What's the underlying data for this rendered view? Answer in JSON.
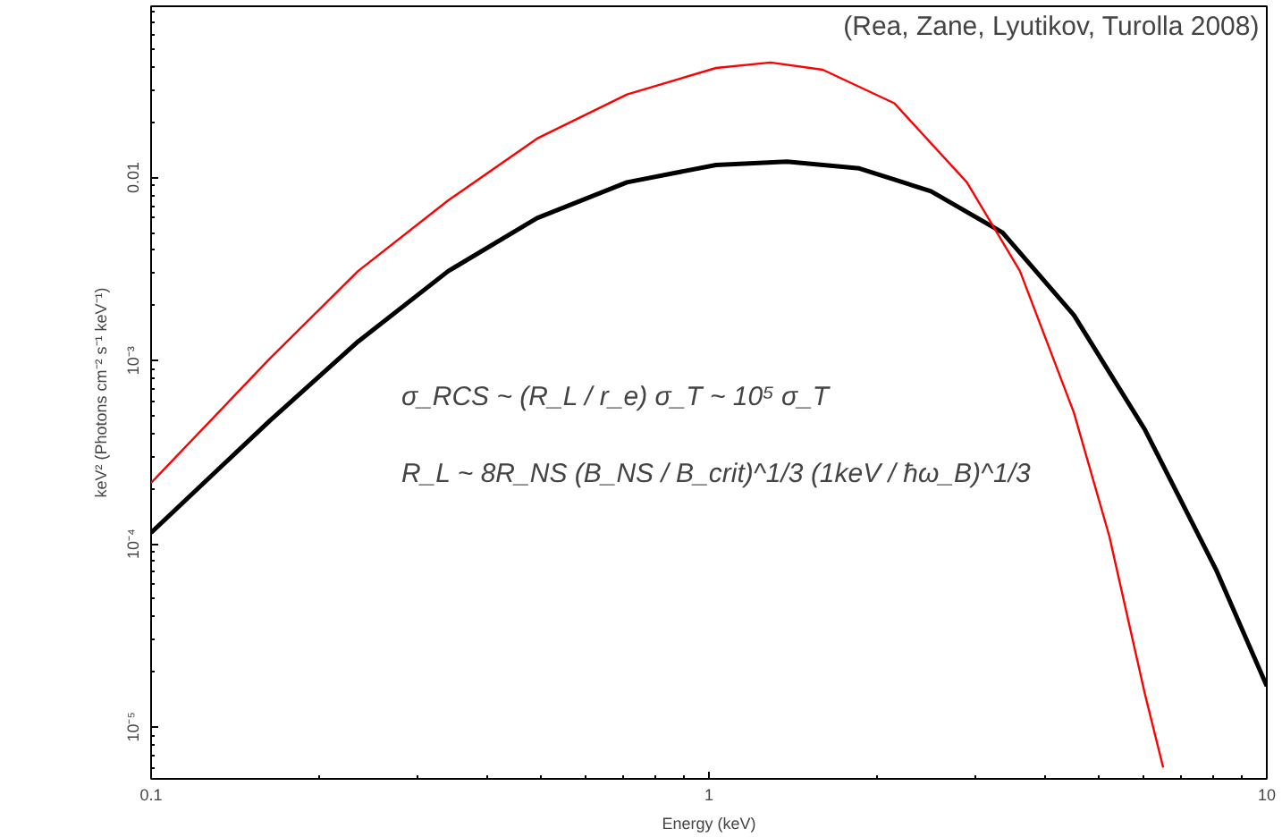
{
  "chart_data": {
    "type": "line",
    "log": "xy",
    "xlabel": "Energy (keV)",
    "ylabel": "keV² (Photons cm⁻² s⁻¹ keV⁻¹)",
    "xlim": [
      0.1,
      10
    ],
    "ylim": [
      5.2e-06,
      0.086
    ],
    "xticks": [
      0.1,
      1,
      10
    ],
    "yticks": [
      {
        "value": 1e-05,
        "label": "10⁻⁵"
      },
      {
        "value": 0.0001,
        "label": "10⁻⁴"
      },
      {
        "value": 0.001,
        "label": "10⁻³"
      },
      0.01
    ],
    "grid": false,
    "marker": "none",
    "line_style": "solid",
    "annotations": [
      "(Rea, Zane, Lyutikov, Turolla 2008)",
      "σ_RCS ~ (R_L / r_e) σ_T ~ 10⁵ σ_T",
      "R_L ~ 8R_NS (B_NS / B_crit)^1/3 (1keV / ħω_B)^1/3"
    ],
    "series": [
      {
        "color": "#000000",
        "x": [
          0.1,
          0.163,
          0.235,
          0.341,
          0.492,
          0.713,
          1.03,
          1.38,
          1.86,
          2.5,
          3.36,
          4.51,
          6.05,
          8.13,
          10
        ],
        "values": [
          0.000115,
          0.000467,
          0.00127,
          0.00308,
          0.006,
          0.0094,
          0.0117,
          0.0122,
          0.0112,
          0.0084,
          0.005,
          0.00177,
          0.000418,
          7.1e-05,
          1.67e-05
        ]
      },
      {
        "color": "#ff0000",
        "x": [
          0.1,
          0.163,
          0.235,
          0.341,
          0.492,
          0.713,
          1.03,
          1.29,
          1.6,
          2.15,
          2.9,
          3.61,
          4.51,
          5.22,
          6.05,
          6.52
        ],
        "values": [
          0.000215,
          0.00102,
          0.00308,
          0.0075,
          0.0163,
          0.0284,
          0.0396,
          0.0424,
          0.0387,
          0.0254,
          0.0094,
          0.00308,
          0.00052,
          0.00011,
          1.5e-05,
          6e-06
        ]
      }
    ]
  }
}
